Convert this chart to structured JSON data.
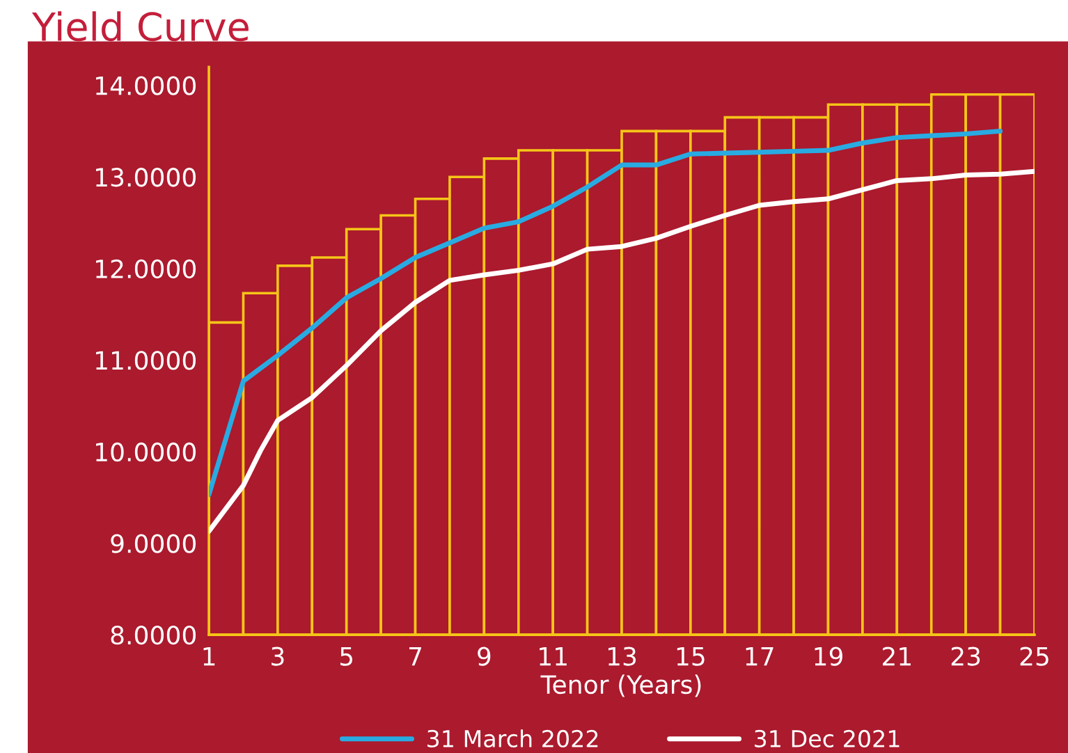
{
  "chart_data": {
    "type": "line",
    "title": "Yield Curve",
    "xlabel": "Tenor (Years)",
    "xlim": [
      1,
      25
    ],
    "xticks": [
      1,
      3,
      5,
      7,
      9,
      11,
      13,
      15,
      17,
      19,
      21,
      23,
      25
    ],
    "ylim": [
      8,
      14.2
    ],
    "yticks": [
      {
        "value": 8,
        "label": "8.0000"
      },
      {
        "value": 9,
        "label": "9.0000"
      },
      {
        "value": 10,
        "label": "10.0000"
      },
      {
        "value": 11,
        "label": "11.0000"
      },
      {
        "value": 12,
        "label": "12.0000"
      },
      {
        "value": 13,
        "label": "13.0000"
      },
      {
        "value": 14,
        "label": "14.0000"
      }
    ],
    "grid": false,
    "legend": "bottom",
    "marker": "none",
    "line_style": "solid",
    "series": [
      {
        "type": "bar",
        "color": "#f5c518",
        "x": [
          1.5,
          2.5,
          3.5,
          4.5,
          5.5,
          6.5,
          7.5,
          8.5,
          9.5,
          10.5,
          11.5,
          12.5,
          13.5,
          14.5,
          15.5,
          16.5,
          17.5,
          18.5,
          19.5,
          20.5,
          21.5,
          22.5,
          23.5,
          24.5
        ],
        "values": [
          11.41,
          11.73,
          12.03,
          12.12,
          12.43,
          12.58,
          12.76,
          13.0,
          13.2,
          13.29,
          13.29,
          13.29,
          13.5,
          13.5,
          13.5,
          13.65,
          13.65,
          13.65,
          13.79,
          13.79,
          13.79,
          13.9,
          13.9,
          13.9
        ]
      },
      {
        "name": "31 March 2022",
        "color": "#29abe2",
        "x": [
          1,
          2,
          3,
          4,
          5,
          6,
          7,
          8,
          9,
          10,
          11,
          12,
          13,
          14,
          15,
          16,
          17,
          18,
          19,
          20,
          21,
          22,
          23,
          24
        ],
        "values": [
          9.53,
          10.77,
          11.05,
          11.35,
          11.68,
          11.89,
          12.12,
          12.28,
          12.44,
          12.51,
          12.68,
          12.89,
          13.13,
          13.13,
          13.25,
          13.26,
          13.27,
          13.28,
          13.29,
          13.37,
          13.43,
          13.45,
          13.47,
          13.5
        ]
      },
      {
        "name": "31 Dec 2021",
        "color": "#ffffff",
        "x": [
          1,
          2,
          2.5,
          3,
          4,
          5,
          6,
          7,
          8,
          9,
          10,
          11,
          12,
          13,
          14,
          15,
          16,
          17,
          18,
          19,
          20,
          21,
          22,
          23,
          24,
          25
        ],
        "values": [
          9.13,
          9.63,
          10.01,
          10.34,
          10.59,
          10.94,
          11.32,
          11.63,
          11.87,
          11.93,
          11.98,
          12.05,
          12.21,
          12.24,
          12.33,
          12.46,
          12.58,
          12.69,
          12.73,
          12.76,
          12.86,
          12.96,
          12.98,
          13.02,
          13.03,
          13.06
        ]
      }
    ]
  }
}
